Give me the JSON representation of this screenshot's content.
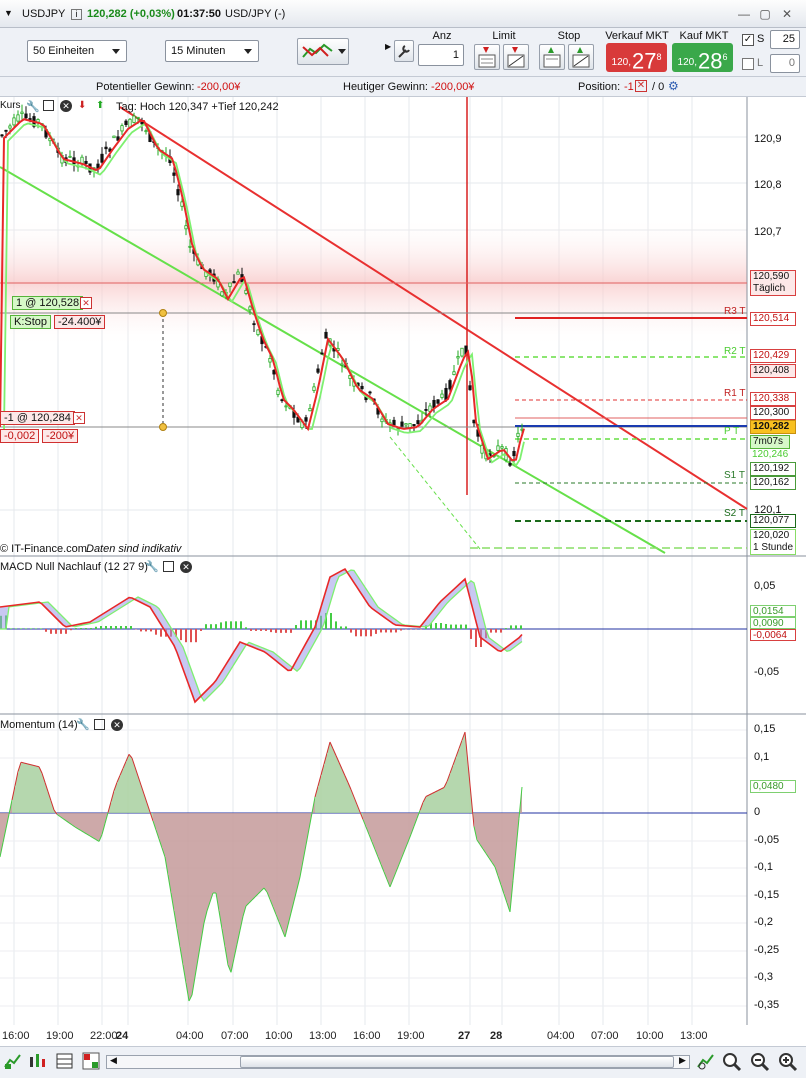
{
  "title": {
    "symbol": "USDJPY",
    "price": "120,282 (+0,03%)",
    "time": "01:37:50",
    "name": "USD/JPY (-)"
  },
  "toolbar": {
    "units": "50 Einheiten",
    "interval": "15 Minuten",
    "anz_label": "Anz",
    "anz_value": "1",
    "limit_label": "Limit",
    "stop_label": "Stop",
    "sell_label": "Verkauf MKT",
    "buy_label": "Kauf MKT",
    "sell_prefix": "120,",
    "sell_big": "27",
    "sell_sup": "8",
    "buy_prefix": "120,",
    "buy_big": "28",
    "buy_sup": "6",
    "s_label": "S",
    "s_value": "25",
    "l_label": "L",
    "l_value": "0"
  },
  "infobar": {
    "pot_label": "Potentieller Gewinn:",
    "pot_value": "-200,00¥",
    "today_label": "Heutiger Gewinn:",
    "today_value": "-200,00¥",
    "pos_label": "Position:",
    "pos_value": "-1",
    "pos_rest": "/ 0"
  },
  "price_panel": {
    "label": "Kurs",
    "hilo": "Tag: Hoch 120,347 +Tief 120,242",
    "source": "© IT-Finance.com",
    "note": "Daten sind indikativ",
    "order1": "1 @ 120,528",
    "kstop": "K:Stop",
    "kstop_val": "-24.400¥",
    "pos_tag": "-1 @ 120,284",
    "pos_a": "-0,002",
    "pos_b": "-200¥",
    "axis": [
      "120,9",
      "120,8",
      "120,7",
      "120,1"
    ],
    "boxes": {
      "daily_price": "120,590",
      "daily_label": "Täglich",
      "r3": "120,514",
      "r2a": "120,429",
      "r2b": "120,408",
      "r1a": "120,338",
      "r1b": "120,300",
      "cur": "120,282",
      "timer": "7m07s",
      "pp": "120,246",
      "s1a": "120,192",
      "s1b": "120,162",
      "s2": "120,077",
      "h1_price": "120,020",
      "h1_label": "1 Stunde"
    },
    "levels": [
      "R3 T",
      "R2 T",
      "R1 T",
      "P T",
      "S1 T",
      "S2 T"
    ]
  },
  "macd_panel": {
    "label": "MACD Null Nachlauf (12 27 9)",
    "axis": [
      "0,05",
      "-0,05"
    ],
    "v1": "0,0154",
    "v2": "0,0090",
    "v3": "-0,0064"
  },
  "mom_panel": {
    "label": "Momentum (14)",
    "axis": [
      "0,15",
      "0,1",
      "0",
      "-0,05",
      "-0,1",
      "-0,15",
      "-0,2",
      "-0,25",
      "-0,3",
      "-0,35"
    ],
    "current": "0,0480"
  },
  "xaxis": [
    "16:00",
    "19:00",
    "22:00",
    "24",
    "04:00",
    "07:00",
    "10:00",
    "13:00",
    "16:00",
    "19:00",
    "27",
    "28",
    "04:00",
    "07:00",
    "10:00",
    "13:00"
  ],
  "colors": {
    "sell": "#d83a3a",
    "buy": "#3aa84a",
    "up": "#33cc33",
    "down": "#e03030"
  }
}
